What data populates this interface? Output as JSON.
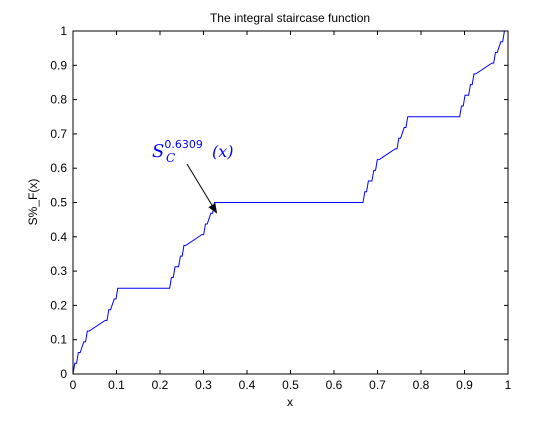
{
  "chart_data": {
    "type": "line",
    "title": "The integral staircase function",
    "xlabel": "x",
    "ylabel": "S%_F(x)",
    "xlim": [
      0,
      1
    ],
    "ylim": [
      0,
      1
    ],
    "x_ticks": [
      "0",
      "0.1",
      "0.2",
      "0.3",
      "0.4",
      "0.5",
      "0.6",
      "0.7",
      "0.8",
      "0.9",
      "1"
    ],
    "y_ticks": [
      "0",
      "0.1",
      "0.2",
      "0.3",
      "0.4",
      "0.5",
      "0.6",
      "0.7",
      "0.8",
      "0.9",
      "1"
    ],
    "grid": false,
    "series": [
      {
        "color": "#0000ff",
        "cantor_levels": 5,
        "x": [
          0,
          0.0041,
          0.0082,
          0.0123,
          0.0165,
          0.0247,
          0.0288,
          0.0329,
          0.037,
          0.0741,
          0.0782,
          0.0823,
          0.0864,
          0.0947,
          0.0988,
          0.1029,
          0.107,
          0.1111,
          0.2222,
          0.2263,
          0.2305,
          0.2346,
          0.2428,
          0.2469,
          0.251,
          0.2551,
          0.2593,
          0.2963,
          0.3004,
          0.3045,
          0.3086,
          0.3169,
          0.321,
          0.3251,
          0.3292,
          0.3333,
          0.6667,
          0.6708,
          0.6749,
          0.679,
          0.6872,
          0.6914,
          0.6955,
          0.6996,
          0.7037,
          0.7407,
          0.7449,
          0.749,
          0.7531,
          0.7613,
          0.7654,
          0.7695,
          0.7737,
          0.7778,
          0.8889,
          0.893,
          0.8971,
          0.9012,
          0.9095,
          0.9136,
          0.9177,
          0.9218,
          0.9259,
          0.963,
          0.9671,
          0.9712,
          0.9753,
          0.9835,
          0.9877,
          0.9918,
          0.9959,
          1.0
        ],
        "y": [
          0,
          0.0313,
          0.0313,
          0.0625,
          0.0625,
          0.0938,
          0.0938,
          0.125,
          0.125,
          0.1563,
          0.1563,
          0.1875,
          0.1875,
          0.2188,
          0.2188,
          0.25,
          0.25,
          0.25,
          0.25,
          0.2813,
          0.2813,
          0.3125,
          0.3125,
          0.3438,
          0.3438,
          0.375,
          0.375,
          0.4063,
          0.4063,
          0.4375,
          0.4375,
          0.4688,
          0.4688,
          0.5,
          0.5,
          0.5,
          0.5,
          0.5313,
          0.5313,
          0.5625,
          0.5625,
          0.5938,
          0.5938,
          0.625,
          0.625,
          0.6563,
          0.6563,
          0.6875,
          0.6875,
          0.7188,
          0.7188,
          0.75,
          0.75,
          0.75,
          0.75,
          0.7813,
          0.7813,
          0.8125,
          0.8125,
          0.8438,
          0.8438,
          0.875,
          0.875,
          0.9063,
          0.9063,
          0.9375,
          0.9375,
          0.9688,
          0.9688,
          1.0,
          1.0,
          1.0
        ]
      }
    ],
    "annotation": {
      "base": "S",
      "subscript": "C",
      "superscript": "0.6309",
      "suffix": "(x)",
      "color": "#0000ff",
      "points_to": [
        0.33,
        0.47
      ]
    }
  }
}
